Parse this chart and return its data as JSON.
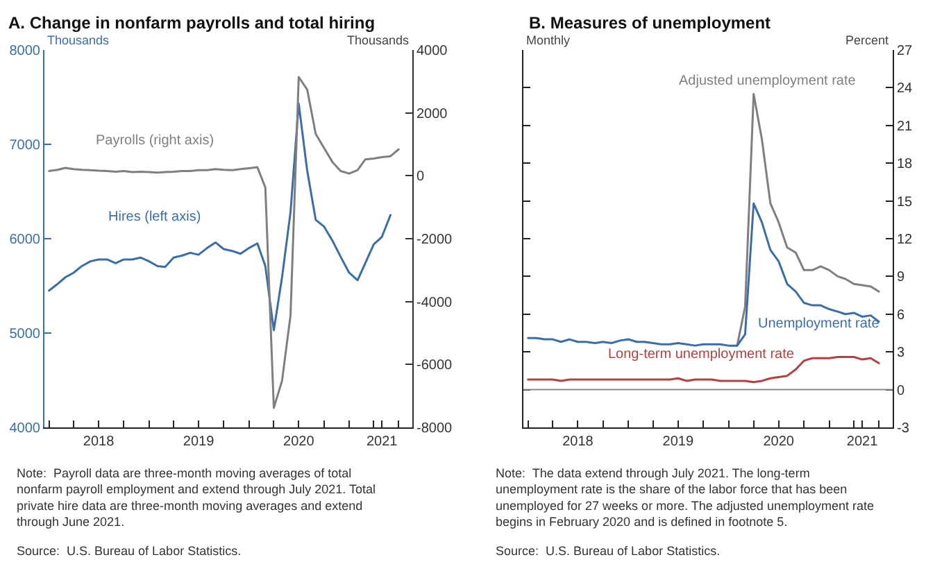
{
  "chart_data": [
    {
      "type": "line",
      "title": "A. Change in nonfarm payrolls and total hiring",
      "ylabel": "Thousands",
      "y2label": "Thousands",
      "x": [
        "2018-01",
        "2018-02",
        "2018-03",
        "2018-04",
        "2018-05",
        "2018-06",
        "2018-07",
        "2018-08",
        "2018-09",
        "2018-10",
        "2018-11",
        "2018-12",
        "2019-01",
        "2019-02",
        "2019-03",
        "2019-04",
        "2019-05",
        "2019-06",
        "2019-07",
        "2019-08",
        "2019-09",
        "2019-10",
        "2019-11",
        "2019-12",
        "2020-01",
        "2020-02",
        "2020-03",
        "2020-04",
        "2020-05",
        "2020-06",
        "2020-07",
        "2020-08",
        "2020-09",
        "2020-10",
        "2020-11",
        "2020-12",
        "2021-01",
        "2021-02",
        "2021-03",
        "2021-04",
        "2021-05",
        "2021-06",
        "2021-07"
      ],
      "series": [
        {
          "name": "Payrolls (right axis)",
          "color": "#7f7f7f",
          "axis": "y2",
          "values": [
            150,
            190,
            250,
            210,
            190,
            180,
            160,
            150,
            130,
            150,
            120,
            130,
            120,
            100,
            120,
            130,
            150,
            150,
            180,
            180,
            210,
            190,
            180,
            210,
            240,
            270,
            -370,
            -7380,
            -6520,
            -4440,
            3140,
            2740,
            1330,
            890,
            440,
            150,
            70,
            180,
            520,
            550,
            590,
            620,
            840
          ]
        },
        {
          "name": "Hires (left axis)",
          "color": "#3b6ea8",
          "values": [
            5450,
            5520,
            5590,
            5640,
            5710,
            5760,
            5780,
            5780,
            5740,
            5780,
            5780,
            5800,
            5760,
            5710,
            5700,
            5800,
            5820,
            5850,
            5830,
            5900,
            5960,
            5890,
            5870,
            5840,
            5900,
            5950,
            5710,
            5030,
            5590,
            6280,
            7430,
            6720,
            6200,
            6130,
            5980,
            5810,
            5640,
            5560,
            5740,
            5940,
            6020,
            6250,
            null
          ]
        }
      ],
      "xlim": [
        "2017-12-15",
        "2021-08-20"
      ],
      "xticks": [
        {
          "value": "2018-01-01",
          "label": null
        },
        {
          "value": "2018-04-01",
          "label": null
        },
        {
          "value": "2018-07-01",
          "label": "2018"
        },
        {
          "value": "2018-10-01",
          "label": null
        },
        {
          "value": "2019-01-01",
          "label": null
        },
        {
          "value": "2019-04-01",
          "label": null
        },
        {
          "value": "2019-07-01",
          "label": "2019"
        },
        {
          "value": "2019-10-01",
          "label": null
        },
        {
          "value": "2020-01-01",
          "label": null
        },
        {
          "value": "2020-04-01",
          "label": null
        },
        {
          "value": "2020-07-01",
          "label": "2020"
        },
        {
          "value": "2020-10-01",
          "label": null
        },
        {
          "value": "2021-01-01",
          "label": null
        },
        {
          "value": "2021-04-01",
          "label": null
        },
        {
          "value": "2021-05-01",
          "label": "2021"
        },
        {
          "value": "2021-07-01",
          "label": null
        }
      ],
      "ylim": [
        4000,
        8000
      ],
      "yticks": [
        4000,
        5000,
        6000,
        7000,
        8000
      ],
      "y2lim": [
        -8000,
        4000
      ],
      "y2ticks": [
        -8000,
        -6000,
        -4000,
        -2000,
        0,
        2000,
        4000
      ],
      "annotations": [
        "Note:  Payroll data are three-month moving averages of total nonfarm payroll employment and extend through July 2021. Total private hire data are three-month moving averages and extend through June 2021.",
        "Source:  U.S. Bureau of Labor Statistics."
      ]
    },
    {
      "type": "line",
      "title": "B. Measures of unemployment",
      "ylabel": "Percent",
      "x": [
        "2018-01",
        "2018-02",
        "2018-03",
        "2018-04",
        "2018-05",
        "2018-06",
        "2018-07",
        "2018-08",
        "2018-09",
        "2018-10",
        "2018-11",
        "2018-12",
        "2019-01",
        "2019-02",
        "2019-03",
        "2019-04",
        "2019-05",
        "2019-06",
        "2019-07",
        "2019-08",
        "2019-09",
        "2019-10",
        "2019-11",
        "2019-12",
        "2020-01",
        "2020-02",
        "2020-03",
        "2020-04",
        "2020-05",
        "2020-06",
        "2020-07",
        "2020-08",
        "2020-09",
        "2020-10",
        "2020-11",
        "2020-12",
        "2021-01",
        "2021-02",
        "2021-03",
        "2021-04",
        "2021-05",
        "2021-06",
        "2021-07"
      ],
      "series": [
        {
          "name": "Adjusted unemployment rate",
          "color": "#7f7f7f",
          "values": [
            null,
            null,
            null,
            null,
            null,
            null,
            null,
            null,
            null,
            null,
            null,
            null,
            null,
            null,
            null,
            null,
            null,
            null,
            null,
            null,
            null,
            null,
            null,
            null,
            null,
            3.5,
            6.6,
            23.5,
            19.9,
            14.8,
            13.3,
            11.3,
            10.9,
            9.5,
            9.5,
            9.8,
            9.5,
            9.0,
            8.8,
            8.4,
            8.3,
            8.2,
            7.8
          ]
        },
        {
          "name": "Unemployment rate",
          "color": "#3b6ea8",
          "values": [
            4.1,
            4.1,
            4.0,
            4.0,
            3.8,
            4.0,
            3.8,
            3.8,
            3.7,
            3.8,
            3.7,
            3.9,
            4.0,
            3.8,
            3.8,
            3.7,
            3.6,
            3.6,
            3.7,
            3.6,
            3.5,
            3.6,
            3.6,
            3.6,
            3.5,
            3.5,
            4.4,
            14.8,
            13.3,
            11.1,
            10.2,
            8.4,
            7.8,
            6.9,
            6.7,
            6.7,
            6.4,
            6.2,
            6.0,
            6.1,
            5.8,
            5.9,
            5.4
          ]
        },
        {
          "name": "Long-term unemployment rate",
          "color": "#b5403f",
          "values": [
            0.8,
            0.8,
            0.8,
            0.8,
            0.7,
            0.8,
            0.8,
            0.8,
            0.8,
            0.8,
            0.8,
            0.8,
            0.8,
            0.8,
            0.8,
            0.8,
            0.8,
            0.8,
            0.9,
            0.7,
            0.8,
            0.8,
            0.8,
            0.7,
            0.7,
            0.7,
            0.7,
            0.6,
            0.7,
            0.9,
            1.0,
            1.1,
            1.6,
            2.3,
            2.5,
            2.5,
            2.5,
            2.6,
            2.6,
            2.6,
            2.4,
            2.5,
            2.1
          ]
        }
      ],
      "xlim": [
        "2017-12-15",
        "2021-08-20"
      ],
      "xticks": [
        {
          "value": "2018-01-01",
          "label": null
        },
        {
          "value": "2018-04-01",
          "label": null
        },
        {
          "value": "2018-07-01",
          "label": "2018"
        },
        {
          "value": "2018-10-01",
          "label": null
        },
        {
          "value": "2019-01-01",
          "label": null
        },
        {
          "value": "2019-04-01",
          "label": null
        },
        {
          "value": "2019-07-01",
          "label": "2019"
        },
        {
          "value": "2019-10-01",
          "label": null
        },
        {
          "value": "2020-01-01",
          "label": null
        },
        {
          "value": "2020-04-01",
          "label": null
        },
        {
          "value": "2020-07-01",
          "label": "2020"
        },
        {
          "value": "2020-10-01",
          "label": null
        },
        {
          "value": "2021-01-01",
          "label": null
        },
        {
          "value": "2021-04-01",
          "label": null
        },
        {
          "value": "2021-05-01",
          "label": "2021"
        },
        {
          "value": "2021-07-01",
          "label": null
        }
      ],
      "ylim": [
        -3,
        27
      ],
      "yticks": [
        -3,
        0,
        3,
        6,
        9,
        12,
        15,
        18,
        21,
        24,
        27
      ],
      "ref_lines": [
        {
          "axis": "y",
          "value": 0,
          "color": "#888888"
        }
      ],
      "annotations": [
        "Monthly",
        "Note:  The data extend through July 2021. The long-term unemployment rate is the share of the labor force that has been unemployed for 27 weeks or more. The adjusted unemployment rate begins in February 2020 and is defined in footnote 5.",
        "Source:  U.S. Bureau of Labor Statistics."
      ]
    }
  ]
}
